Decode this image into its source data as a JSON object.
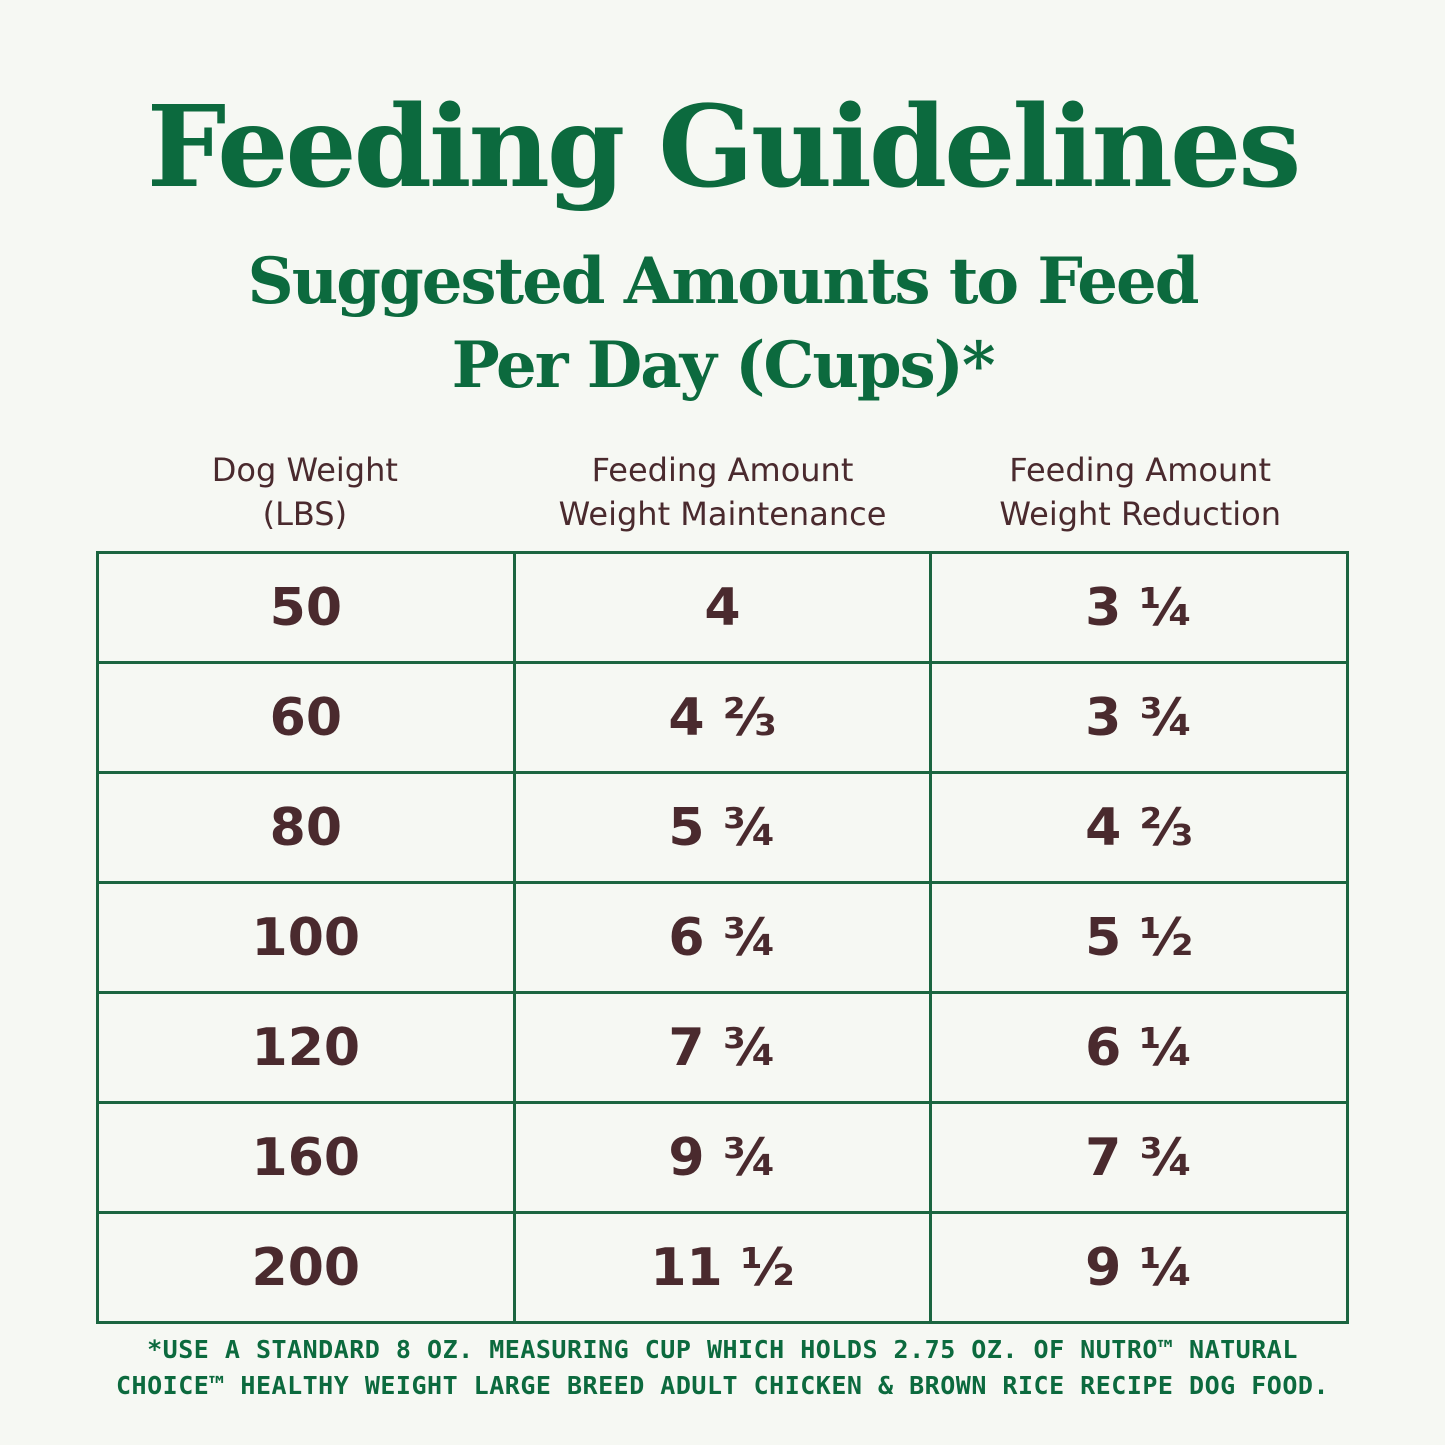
{
  "title": "Feeding Guidelines",
  "subtitle_line1": "Suggested Amounts to Feed",
  "subtitle_line2": "Per Day (Cups)*",
  "columns": [
    {
      "line1": "Dog Weight",
      "line2": "(LBS)"
    },
    {
      "line1": "Feeding Amount",
      "line2": "Weight Maintenance"
    },
    {
      "line1": "Feeding Amount",
      "line2": "Weight Reduction"
    }
  ],
  "rows": [
    [
      "50",
      "4",
      "3 ¼"
    ],
    [
      "60",
      "4 ⅔",
      "3 ¾"
    ],
    [
      "80",
      "5 ¾",
      "4 ⅔"
    ],
    [
      "100",
      "6 ¾",
      "5 ½"
    ],
    [
      "120",
      "7 ¾",
      "6 ¼"
    ],
    [
      "160",
      "9 ¾",
      "7 ¾"
    ],
    [
      "200",
      "11 ½",
      "9 ¼"
    ]
  ],
  "footnote_line1": "*USE A STANDARD 8 OZ. MEASURING CUP WHICH HOLDS 2.75 OZ. OF NUTRO™ NATURAL",
  "footnote_line2": "CHOICE™ HEALTHY WEIGHT LARGE BREED ADULT CHICKEN & BROWN RICE RECIPE DOG FOOD.",
  "colors": {
    "accent": "#0c6a3e",
    "text": "#4a2a2e",
    "background": "#f6f8f3"
  }
}
